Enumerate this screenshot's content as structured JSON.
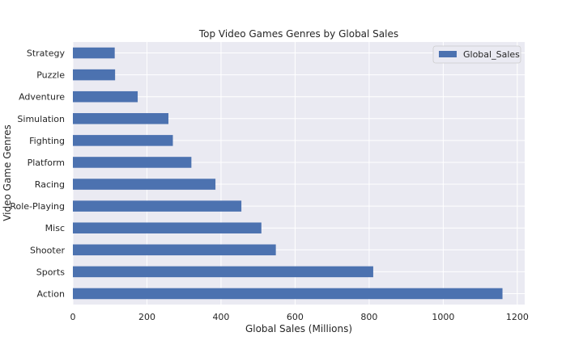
{
  "chart_data": {
    "type": "bar",
    "orientation": "horizontal",
    "title": "Top Video Games Genres by Global Sales",
    "xlabel": "Global Sales (Millions)",
    "ylabel": "Video Game Genres",
    "categories": [
      "Action",
      "Sports",
      "Shooter",
      "Misc",
      "Role-Playing",
      "Racing",
      "Platform",
      "Fighting",
      "Simulation",
      "Adventure",
      "Puzzle",
      "Strategy"
    ],
    "series": [
      {
        "name": "Global_Sales",
        "values": [
          1160,
          811,
          548,
          509,
          455,
          385,
          320,
          270,
          258,
          175,
          114,
          113
        ],
        "color": "#4c72b0"
      }
    ],
    "xlim": [
      0,
      1220
    ],
    "xticks": [
      0,
      200,
      400,
      600,
      800,
      1000,
      1200
    ],
    "grid": true,
    "legend_position": "top-right",
    "background": "#eaeaf2"
  }
}
